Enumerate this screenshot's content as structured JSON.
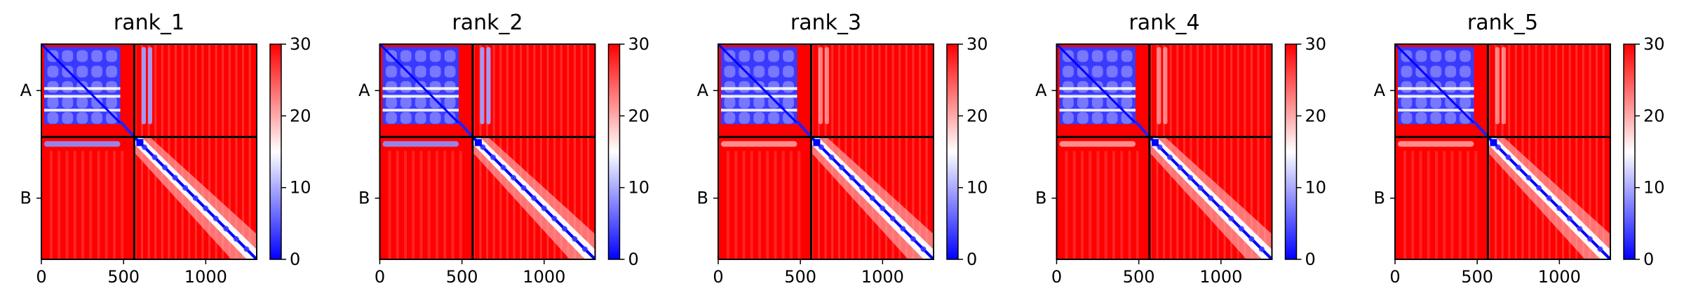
{
  "figure": {
    "background": "#ffffff"
  },
  "colormap": {
    "name": "bwr",
    "low": "#0000ff",
    "mid": "#ffffff",
    "high": "#ff0000"
  },
  "chart_data": [
    {
      "type": "heatmap",
      "title": "rank_1",
      "x_ticks": [
        0,
        500,
        1000
      ],
      "x_tick_labels": [
        "0",
        "500",
        "1000"
      ],
      "xlim": [
        0,
        1310
      ],
      "ylim": [
        0,
        1310
      ],
      "chain_boundary": 565,
      "chains": [
        {
          "label": "A",
          "center": 282.5
        },
        {
          "label": "B",
          "center": 937.5
        }
      ],
      "colorbar": {
        "min": 0,
        "max": 30,
        "ticks": [
          0,
          10,
          20,
          30
        ],
        "tick_labels": [
          "0",
          "10",
          "20",
          "30"
        ]
      },
      "interchain_contacts": "A_stripes_to_B"
    },
    {
      "type": "heatmap",
      "title": "rank_2",
      "x_ticks": [
        0,
        500,
        1000
      ],
      "x_tick_labels": [
        "0",
        "500",
        "1000"
      ],
      "xlim": [
        0,
        1310
      ],
      "ylim": [
        0,
        1310
      ],
      "chain_boundary": 565,
      "chains": [
        {
          "label": "A",
          "center": 282.5
        },
        {
          "label": "B",
          "center": 937.5
        }
      ],
      "colorbar": {
        "min": 0,
        "max": 30,
        "ticks": [
          0,
          10,
          20,
          30
        ],
        "tick_labels": [
          "0",
          "10",
          "20",
          "30"
        ]
      },
      "interchain_contacts": "A_stripes_to_B"
    },
    {
      "type": "heatmap",
      "title": "rank_3",
      "x_ticks": [
        0,
        500,
        1000
      ],
      "x_tick_labels": [
        "0",
        "500",
        "1000"
      ],
      "xlim": [
        0,
        1310
      ],
      "ylim": [
        0,
        1310
      ],
      "chain_boundary": 565,
      "chains": [
        {
          "label": "A",
          "center": 282.5
        },
        {
          "label": "B",
          "center": 937.5
        }
      ],
      "colorbar": {
        "min": 0,
        "max": 30,
        "ticks": [
          0,
          10,
          20,
          30
        ],
        "tick_labels": [
          "0",
          "10",
          "20",
          "30"
        ]
      },
      "interchain_contacts": "weak"
    },
    {
      "type": "heatmap",
      "title": "rank_4",
      "x_ticks": [
        0,
        500,
        1000
      ],
      "x_tick_labels": [
        "0",
        "500",
        "1000"
      ],
      "xlim": [
        0,
        1310
      ],
      "ylim": [
        0,
        1310
      ],
      "chain_boundary": 565,
      "chains": [
        {
          "label": "A",
          "center": 282.5
        },
        {
          "label": "B",
          "center": 937.5
        }
      ],
      "colorbar": {
        "min": 0,
        "max": 30,
        "ticks": [
          0,
          10,
          20,
          30
        ],
        "tick_labels": [
          "0",
          "10",
          "20",
          "30"
        ]
      },
      "interchain_contacts": "weak"
    },
    {
      "type": "heatmap",
      "title": "rank_5",
      "x_ticks": [
        0,
        500,
        1000
      ],
      "x_tick_labels": [
        "0",
        "500",
        "1000"
      ],
      "xlim": [
        0,
        1310
      ],
      "ylim": [
        0,
        1310
      ],
      "chain_boundary": 565,
      "chains": [
        {
          "label": "A",
          "center": 282.5
        },
        {
          "label": "B",
          "center": 937.5
        }
      ],
      "colorbar": {
        "min": 0,
        "max": 30,
        "ticks": [
          0,
          10,
          20,
          30
        ],
        "tick_labels": [
          "0",
          "10",
          "20",
          "30"
        ]
      },
      "interchain_contacts": "weak"
    }
  ]
}
